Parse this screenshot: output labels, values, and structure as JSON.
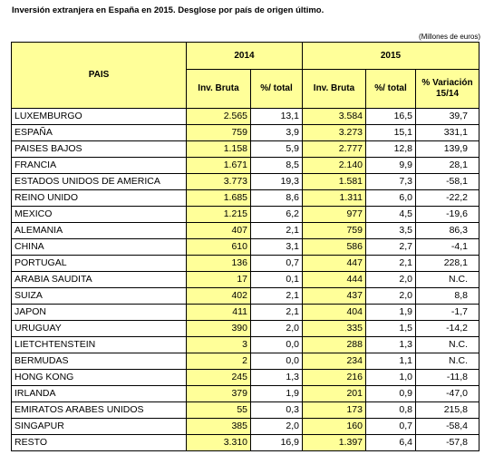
{
  "title": "Inversión extranjera en España en 2015. Desglose por país de origen último.",
  "units": "(Millones de euros)",
  "headers": {
    "pais": "PAIS",
    "year1": "2014",
    "year2": "2015",
    "inv_bruta": "Inv. Bruta",
    "pct_total": "%/ total",
    "variacion_line1": "% Variación",
    "variacion_line2": "15/14"
  },
  "rows": [
    {
      "country": "LUXEMBURGO",
      "inv2014": "2.565",
      "pct2014": "13,1",
      "inv2015": "3.584",
      "pct2015": "16,5",
      "var": "39,7"
    },
    {
      "country": "ESPAÑA",
      "inv2014": "759",
      "pct2014": "3,9",
      "inv2015": "3.273",
      "pct2015": "15,1",
      "var": "331,1"
    },
    {
      "country": "PAISES BAJOS",
      "inv2014": "1.158",
      "pct2014": "5,9",
      "inv2015": "2.777",
      "pct2015": "12,8",
      "var": "139,9"
    },
    {
      "country": "FRANCIA",
      "inv2014": "1.671",
      "pct2014": "8,5",
      "inv2015": "2.140",
      "pct2015": "9,9",
      "var": "28,1"
    },
    {
      "country": "ESTADOS UNIDOS DE AMERICA",
      "inv2014": "3.773",
      "pct2014": "19,3",
      "inv2015": "1.581",
      "pct2015": "7,3",
      "var": "-58,1"
    },
    {
      "country": "REINO UNIDO",
      "inv2014": "1.685",
      "pct2014": "8,6",
      "inv2015": "1.311",
      "pct2015": "6,0",
      "var": "-22,2"
    },
    {
      "country": "MEXICO",
      "inv2014": "1.215",
      "pct2014": "6,2",
      "inv2015": "977",
      "pct2015": "4,5",
      "var": "-19,6"
    },
    {
      "country": "ALEMANIA",
      "inv2014": "407",
      "pct2014": "2,1",
      "inv2015": "759",
      "pct2015": "3,5",
      "var": "86,3"
    },
    {
      "country": "CHINA",
      "inv2014": "610",
      "pct2014": "3,1",
      "inv2015": "586",
      "pct2015": "2,7",
      "var": "-4,1"
    },
    {
      "country": "PORTUGAL",
      "inv2014": "136",
      "pct2014": "0,7",
      "inv2015": "447",
      "pct2015": "2,1",
      "var": "228,1"
    },
    {
      "country": "ARABIA SAUDITA",
      "inv2014": "17",
      "pct2014": "0,1",
      "inv2015": "444",
      "pct2015": "2,0",
      "var": "N.C."
    },
    {
      "country": "SUIZA",
      "inv2014": "402",
      "pct2014": "2,1",
      "inv2015": "437",
      "pct2015": "2,0",
      "var": "8,8"
    },
    {
      "country": "JAPON",
      "inv2014": "411",
      "pct2014": "2,1",
      "inv2015": "404",
      "pct2015": "1,9",
      "var": "-1,7"
    },
    {
      "country": "URUGUAY",
      "inv2014": "390",
      "pct2014": "2,0",
      "inv2015": "335",
      "pct2015": "1,5",
      "var": "-14,2"
    },
    {
      "country": "LIETCHTENSTEIN",
      "inv2014": "3",
      "pct2014": "0,0",
      "inv2015": "288",
      "pct2015": "1,3",
      "var": "N.C."
    },
    {
      "country": "BERMUDAS",
      "inv2014": "2",
      "pct2014": "0,0",
      "inv2015": "234",
      "pct2015": "1,1",
      "var": "N.C."
    },
    {
      "country": "HONG  KONG",
      "inv2014": "245",
      "pct2014": "1,3",
      "inv2015": "216",
      "pct2015": "1,0",
      "var": "-11,8"
    },
    {
      "country": "IRLANDA",
      "inv2014": "379",
      "pct2014": "1,9",
      "inv2015": "201",
      "pct2015": "0,9",
      "var": "-47,0"
    },
    {
      "country": "EMIRATOS ARABES UNIDOS",
      "inv2014": "55",
      "pct2014": "0,3",
      "inv2015": "173",
      "pct2015": "0,8",
      "var": "215,8"
    },
    {
      "country": "SINGAPUR",
      "inv2014": "385",
      "pct2014": "2,0",
      "inv2015": "160",
      "pct2015": "0,7",
      "var": "-58,4"
    },
    {
      "country": "RESTO",
      "inv2014": "3.310",
      "pct2014": "16,9",
      "inv2015": "1.397",
      "pct2015": "6,4",
      "var": "-57,8"
    }
  ],
  "colors": {
    "header_fill": "#ffff99"
  }
}
